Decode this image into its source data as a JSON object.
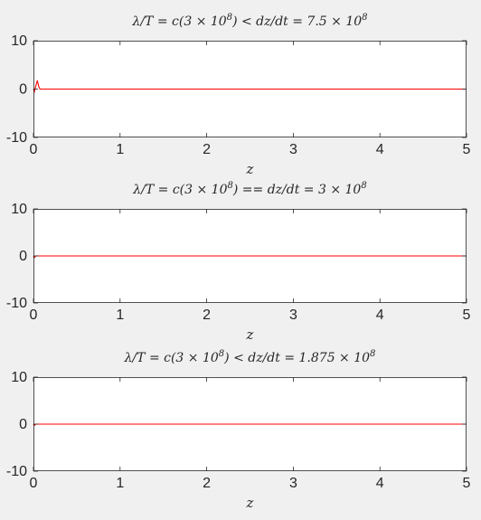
{
  "colors": {
    "figure_bg": "#f0f0f0",
    "axes_bg": "#ffffff",
    "axis": "#262626",
    "series": "#ff0000"
  },
  "chart_data": [
    {
      "type": "line",
      "title": "λ/T = c(3 × 10^8) < dz/dt = 7.5 × 10^8",
      "title_parts": {
        "lead": "λ/T = c(3 × 10",
        "lead_sup": "8",
        "mid": ") < dz/dt = 7.5 × 10",
        "tail_sup": "8"
      },
      "xlabel": "z",
      "ylabel": "",
      "xlim": [
        0,
        5
      ],
      "ylim": [
        -10,
        10
      ],
      "xticks": [
        0,
        1,
        2,
        3,
        4,
        5
      ],
      "yticks": [
        -10,
        0,
        10
      ],
      "grid": false,
      "series": [
        {
          "x": [
            0,
            0.01,
            0.025,
            0.045,
            0.06,
            0.075,
            0.1,
            5
          ],
          "y": [
            0,
            -0.6,
            0.5,
            1.8,
            0.6,
            0,
            0,
            0
          ]
        }
      ]
    },
    {
      "type": "line",
      "title": "λ/T = c(3 × 10^8) == dz/dt = 3 × 10^8",
      "title_parts": {
        "lead": "λ/T = c(3 × 10",
        "lead_sup": "8",
        "mid": ") == dz/dt = 3 × 10",
        "tail_sup": "8"
      },
      "xlabel": "z",
      "ylabel": "",
      "xlim": [
        0,
        5
      ],
      "ylim": [
        -10,
        10
      ],
      "xticks": [
        0,
        1,
        2,
        3,
        4,
        5
      ],
      "yticks": [
        -10,
        0,
        10
      ],
      "grid": false,
      "series": [
        {
          "x": [
            0,
            0.01,
            0.025,
            5
          ],
          "y": [
            0,
            -0.4,
            0,
            0
          ]
        }
      ]
    },
    {
      "type": "line",
      "title": "λ/T = c(3 × 10^8) < dz/dt = 1.875 × 10^8",
      "title_parts": {
        "lead": "λ/T = c(3 × 10",
        "lead_sup": "8",
        "mid": ") < dz/dt = 1.875 × 10",
        "tail_sup": "8"
      },
      "xlabel": "z",
      "ylabel": "",
      "xlim": [
        0,
        5
      ],
      "ylim": [
        -10,
        10
      ],
      "xticks": [
        0,
        1,
        2,
        3,
        4,
        5
      ],
      "yticks": [
        -10,
        0,
        10
      ],
      "grid": false,
      "series": [
        {
          "x": [
            0,
            0.01,
            0.025,
            5
          ],
          "y": [
            0,
            -0.3,
            0,
            0
          ]
        }
      ]
    }
  ]
}
